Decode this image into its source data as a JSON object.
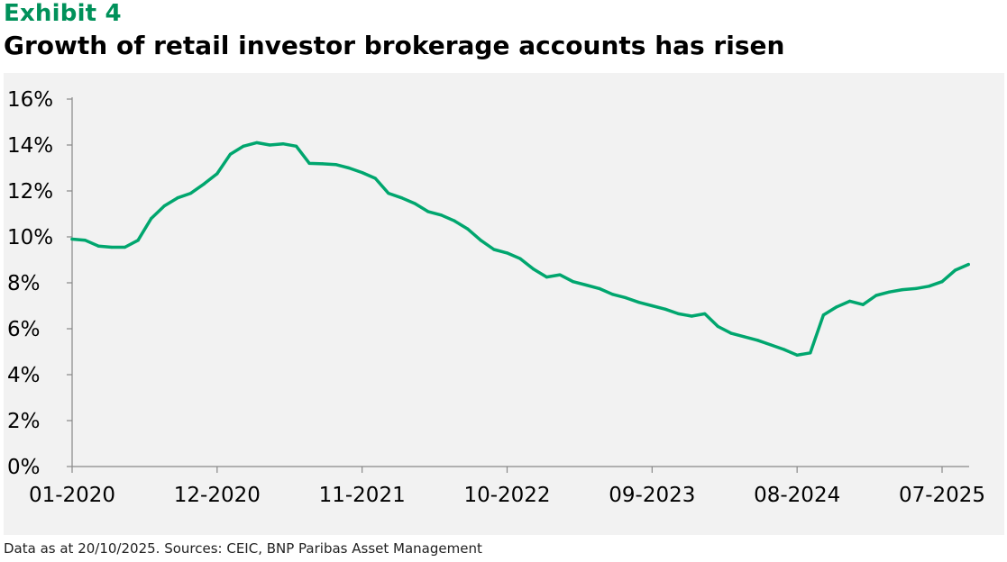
{
  "header": {
    "exhibit": "Exhibit 4",
    "title": "Growth of retail investor brokerage accounts has risen"
  },
  "footer": {
    "source": "Data as at 20/10/2025. Sources: CEIC, BNP Paribas Asset Management"
  },
  "colors": {
    "line": "#00A66E",
    "exhibit": "#00915A",
    "background": "#f2f2f2"
  },
  "chart_data": {
    "type": "line",
    "title": "",
    "xlabel": "",
    "ylabel": "",
    "ylim": [
      0,
      16
    ],
    "y_ticks": [
      "0%",
      "2%",
      "4%",
      "6%",
      "8%",
      "10%",
      "12%",
      "14%",
      "16%"
    ],
    "x_ticks": [
      "01-2020",
      "12-2020",
      "11-2021",
      "10-2022",
      "09-2023",
      "08-2024",
      "07-2025"
    ],
    "grid": false,
    "legend": "none",
    "series": [
      {
        "x": [
          "01-2020",
          "02-2020",
          "03-2020",
          "04-2020",
          "05-2020",
          "06-2020",
          "07-2020",
          "08-2020",
          "09-2020",
          "10-2020",
          "11-2020",
          "12-2020",
          "01-2021",
          "02-2021",
          "03-2021",
          "04-2021",
          "05-2021",
          "06-2021",
          "07-2021",
          "08-2021",
          "09-2021",
          "10-2021",
          "11-2021",
          "12-2021",
          "01-2022",
          "02-2022",
          "03-2022",
          "04-2022",
          "05-2022",
          "06-2022",
          "07-2022",
          "08-2022",
          "09-2022",
          "10-2022",
          "11-2022",
          "12-2022",
          "01-2023",
          "02-2023",
          "03-2023",
          "04-2023",
          "05-2023",
          "06-2023",
          "07-2023",
          "08-2023",
          "09-2023",
          "10-2023",
          "11-2023",
          "12-2023",
          "01-2024",
          "02-2024",
          "03-2024",
          "04-2024",
          "05-2024",
          "06-2024",
          "07-2024",
          "08-2024",
          "09-2024",
          "10-2024",
          "11-2024",
          "12-2024",
          "01-2025",
          "02-2025",
          "03-2025",
          "04-2025",
          "05-2025",
          "06-2025",
          "07-2025",
          "08-2025",
          "09-2025"
        ],
        "values": [
          9.9,
          9.85,
          9.6,
          9.55,
          9.55,
          9.85,
          10.8,
          11.35,
          11.7,
          11.9,
          12.3,
          12.75,
          13.6,
          13.95,
          14.1,
          14.0,
          14.05,
          13.95,
          13.2,
          13.18,
          13.15,
          13.0,
          12.8,
          12.55,
          11.9,
          11.7,
          11.45,
          11.1,
          10.95,
          10.7,
          10.35,
          9.85,
          9.45,
          9.3,
          9.05,
          8.6,
          8.25,
          8.35,
          8.05,
          7.9,
          7.75,
          7.5,
          7.35,
          7.15,
          7.0,
          6.85,
          6.65,
          6.55,
          6.65,
          6.1,
          5.8,
          5.65,
          5.5,
          5.3,
          5.1,
          4.85,
          4.95,
          6.6,
          6.95,
          7.2,
          7.05,
          7.45,
          7.6,
          7.7,
          7.75,
          7.85,
          8.05,
          8.55,
          8.8
        ]
      }
    ]
  }
}
